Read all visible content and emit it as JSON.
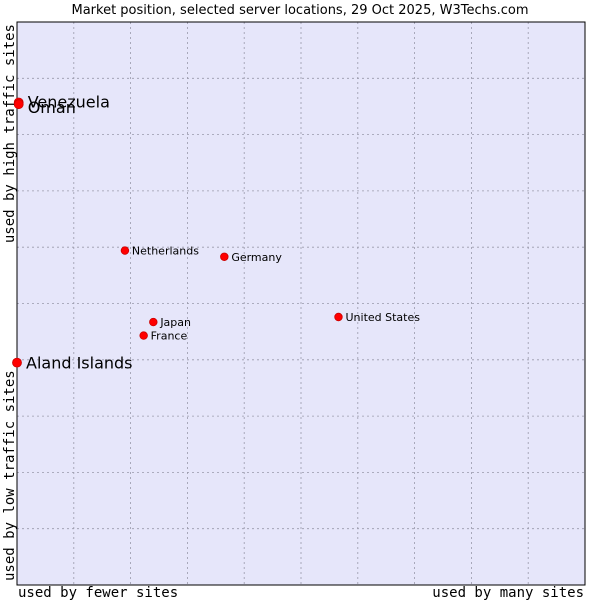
{
  "chart_data": {
    "type": "scatter",
    "title": "Market position, selected server locations, 29 Oct 2025, W3Techs.com",
    "xlabel_left": "used by fewer sites",
    "xlabel_right": "used by many sites",
    "ylabel_top": "used by high traffic sites",
    "ylabel_bottom": "used by low traffic sites",
    "xlim": [
      0,
      100
    ],
    "ylim": [
      0,
      100
    ],
    "grid": true,
    "colors": {
      "background": "#e6e6fa",
      "grid": "#9999aa",
      "marker": "#ff0000",
      "marker_edge": "#cc0000",
      "frame": "#000000"
    },
    "points": [
      {
        "name": "Venezuela",
        "x": 0.3,
        "y": 85.7,
        "emphasis": true
      },
      {
        "name": "Oman",
        "x": 0.3,
        "y": 85.4,
        "emphasis": true
      },
      {
        "name": "Netherlands",
        "x": 19,
        "y": 59.4,
        "emphasis": false
      },
      {
        "name": "Germany",
        "x": 36.5,
        "y": 58.3,
        "emphasis": false
      },
      {
        "name": "United States",
        "x": 56.6,
        "y": 47.6,
        "emphasis": false
      },
      {
        "name": "Japan",
        "x": 24,
        "y": 46.7,
        "emphasis": false
      },
      {
        "name": "France",
        "x": 22.3,
        "y": 44.3,
        "emphasis": false
      },
      {
        "name": "Aland Islands",
        "x": 0,
        "y": 39.5,
        "emphasis": true
      }
    ]
  }
}
